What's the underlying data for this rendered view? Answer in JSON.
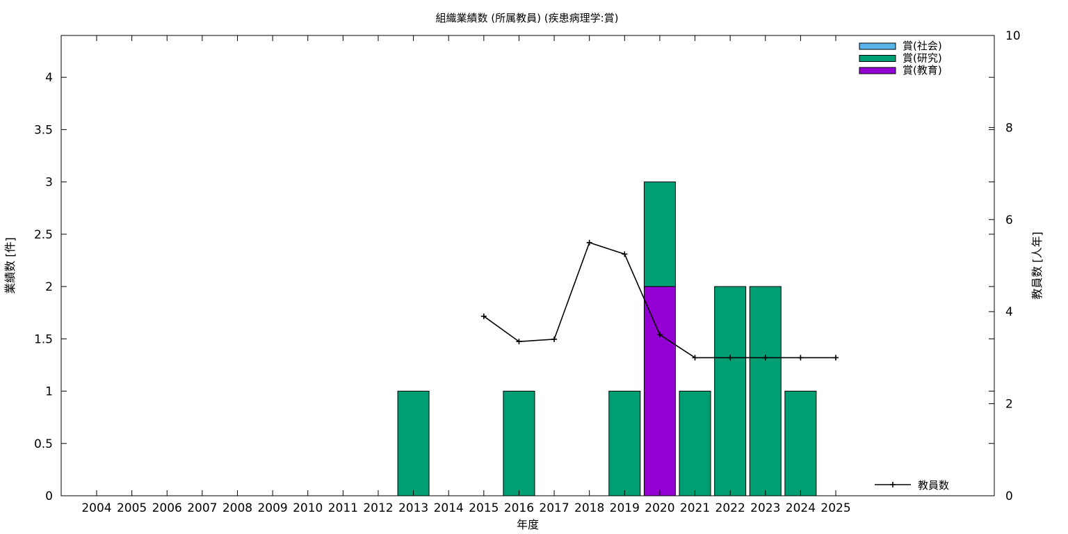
{
  "chart_data": {
    "type": "bar",
    "title": "組織業績数 (所属教員) (疾患病理学:賞)",
    "xlabel": "年度",
    "ylabel": "業績数 [件]",
    "y2label": "教員数 [人年]",
    "categories": [
      "2004",
      "2005",
      "2006",
      "2007",
      "2008",
      "2009",
      "2010",
      "2011",
      "2012",
      "2013",
      "2014",
      "2015",
      "2016",
      "2017",
      "2018",
      "2019",
      "2020",
      "2021",
      "2022",
      "2023",
      "2024",
      "2025"
    ],
    "ylim": [
      0,
      4.4
    ],
    "yticks": [
      "0",
      "0.5",
      "1",
      "1.5",
      "2",
      "2.5",
      "3",
      "3.5",
      "4"
    ],
    "y2lim": [
      0,
      10
    ],
    "y2ticks": [
      "0",
      "2",
      "4",
      "6",
      "8",
      "10"
    ],
    "stacked": true,
    "grid": false,
    "legend_position": "top-right",
    "series": [
      {
        "name": "賞(社会)",
        "color": "#56b4e9",
        "values": [
          0,
          0,
          0,
          0,
          0,
          0,
          0,
          0,
          0,
          0,
          0,
          0,
          0,
          0,
          0,
          0,
          0,
          0,
          0,
          0,
          0,
          0
        ]
      },
      {
        "name": "賞(研究)",
        "color": "#009e73",
        "values": [
          0,
          0,
          0,
          0,
          0,
          0,
          0,
          0,
          0,
          1,
          0,
          0,
          1,
          0,
          0,
          1,
          1,
          1,
          2,
          2,
          1,
          0
        ]
      },
      {
        "name": "賞(教育)",
        "color": "#9400d3",
        "values": [
          0,
          0,
          0,
          0,
          0,
          0,
          0,
          0,
          0,
          0,
          0,
          0,
          0,
          0,
          0,
          0,
          2,
          0,
          0,
          0,
          0,
          0
        ]
      }
    ],
    "line_series": {
      "name": "教員数",
      "axis": "y2",
      "color": "#000000",
      "legend_position": "bottom-right",
      "x": [
        "2015",
        "2016",
        "2017",
        "2018",
        "2019",
        "2020",
        "2021",
        "2022",
        "2023",
        "2024",
        "2025"
      ],
      "values": [
        3.9,
        3.35,
        3.4,
        5.5,
        5.25,
        3.5,
        3.0,
        3.0,
        3.0,
        3.0,
        3.0
      ]
    }
  }
}
